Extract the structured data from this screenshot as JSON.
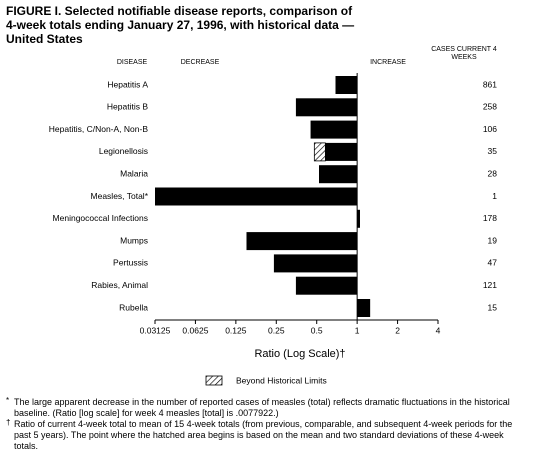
{
  "chart_data": {
    "type": "bar",
    "title": "FIGURE I. Selected notifiable disease reports, comparison of 4-week totals ending January 27, 1996, with historical data — United States",
    "category_header": "DISEASE",
    "decrease_label": "DECREASE",
    "increase_label": "INCREASE",
    "cases_header": "CASES CURRENT 4 WEEKS",
    "categories": [
      "Hepatitis A",
      "Hepatitis B",
      "Hepatitis, C/Non-A, Non-B",
      "Legionellosis",
      "Malaria",
      "Measles, Total*",
      "Meningococcal Infections",
      "Mumps",
      "Pertussis",
      "Rabies, Animal",
      "Rubella"
    ],
    "values": [
      0.69,
      0.35,
      0.45,
      0.48,
      0.52,
      0.0077922,
      1.05,
      0.15,
      0.24,
      0.35,
      1.25
    ],
    "historical_limit": [
      null,
      null,
      null,
      0.58,
      null,
      null,
      null,
      null,
      null,
      null,
      null
    ],
    "cases": [
      861,
      258,
      106,
      35,
      28,
      1,
      178,
      19,
      47,
      121,
      15
    ],
    "color": "#000000",
    "log_scale": true,
    "baseline": 1,
    "xlim": [
      0.03125,
      4
    ],
    "xticks": [
      0.03125,
      0.0625,
      0.125,
      0.25,
      0.5,
      1,
      2,
      4
    ],
    "xlabel": "Ratio (Log Scale)†",
    "legend": "Beyond Historical Limits",
    "footnotes": [
      {
        "symbol": "*",
        "text": "The large apparent decrease in the number of reported cases of measles (total) reflects dramatic fluctuations in the historical baseline. (Ratio [log scale] for week 4 measles [total] is .0077922.)"
      },
      {
        "symbol": "†",
        "text": "Ratio of current 4-week total to mean of 15 4-week totals (from previous, comparable, and subsequent 4-week periods for the past 5 years). The point where the hatched area begins is based on the mean and two standard deviations of these 4-week totals."
      }
    ]
  }
}
